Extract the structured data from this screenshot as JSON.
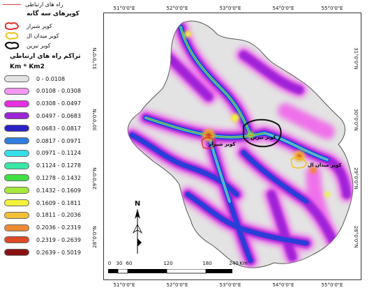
{
  "legend": {
    "roads_label": "راه های ارتباطی",
    "cities_heading": "کوپرهای سه گانه",
    "cities": [
      {
        "label": "کویر شیراز",
        "color": "#e0342e"
      },
      {
        "label": "کویر میدان ال",
        "color": "#f2c21a"
      },
      {
        "label": "کویر نیرین",
        "color": "#111111"
      }
    ],
    "density_heading": "تراکم راه های ارتباطی",
    "density_unit": "Km * Km2",
    "classes": [
      {
        "range": "0 - 0.0108",
        "color": "#e3e3e3"
      },
      {
        "range": "0.0108 - 0.0308",
        "color": "#f398f0"
      },
      {
        "range": "0.0308 - 0.0497",
        "color": "#e62ee0"
      },
      {
        "range": "0.0497 - 0.0683",
        "color": "#9b24d9"
      },
      {
        "range": "0.0683 - 0.0817",
        "color": "#2a22c4"
      },
      {
        "range": "0.0817 - 0.0971",
        "color": "#2f7de0"
      },
      {
        "range": "0.0971 - 0.1124",
        "color": "#35e0ea"
      },
      {
        "range": "0.1124 - 0.1278",
        "color": "#39e8a6"
      },
      {
        "range": "0.1278 - 0.1432",
        "color": "#3fe044"
      },
      {
        "range": "0.1432 - 0.1609",
        "color": "#a6ea3a"
      },
      {
        "range": "0.1609 - 0.1811",
        "color": "#f3f23a"
      },
      {
        "range": "0.1811 - 0.2036",
        "color": "#f2c13a"
      },
      {
        "range": "0.2036 - 0.2319",
        "color": "#ee8a32"
      },
      {
        "range": "0.2319 - 0.2639",
        "color": "#dd4a25"
      },
      {
        "range": "0.2639 - 0.5019",
        "color": "#8a1111"
      }
    ]
  },
  "map": {
    "top_ticks": [
      "51°0'0\"E",
      "52°0'0\"E",
      "53°0'0\"E",
      "54°0'0\"E",
      "55°0'0\"E"
    ],
    "bottom_ticks": [
      "51°0'0\"E",
      "52°0'0\"E",
      "53°0'0\"E",
      "54°0'0\"E",
      "55°0'0\"E"
    ],
    "left_ticks": [
      "31°0'0\"N",
      "30°0'0\"N",
      "29°0'0\"N",
      "28°0'0\"N"
    ],
    "right_ticks": [
      "31°0'0\"N",
      "30°0'0\"N",
      "29°0'0\"N",
      "28°0'0\"N"
    ],
    "north_label": "N",
    "scale_labels": [
      "0",
      "30",
      "60",
      "120",
      "180",
      "240"
    ],
    "scale_unit": "Km",
    "city_labels": [
      "کویر شیراز",
      "کویر میدان ال",
      "کویر نیرین"
    ]
  }
}
